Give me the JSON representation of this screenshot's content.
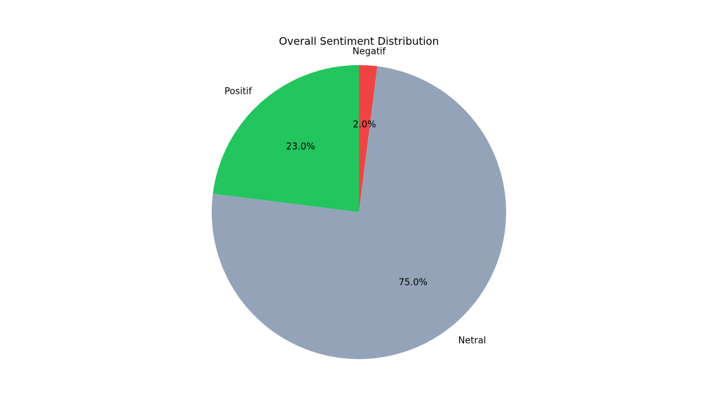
{
  "chart_data": {
    "type": "pie",
    "title": "Overall Sentiment Distribution",
    "start_angle_deg": 90,
    "direction": "clockwise",
    "slices": [
      {
        "label": "Negatif",
        "value": 2.0,
        "pct_label": "2.0%",
        "color": "#ef4444"
      },
      {
        "label": "Netral",
        "value": 75.0,
        "pct_label": "75.0%",
        "color": "#94a3b8"
      },
      {
        "label": "Positif",
        "value": 23.0,
        "pct_label": "23.0%",
        "color": "#22c55e"
      }
    ]
  }
}
